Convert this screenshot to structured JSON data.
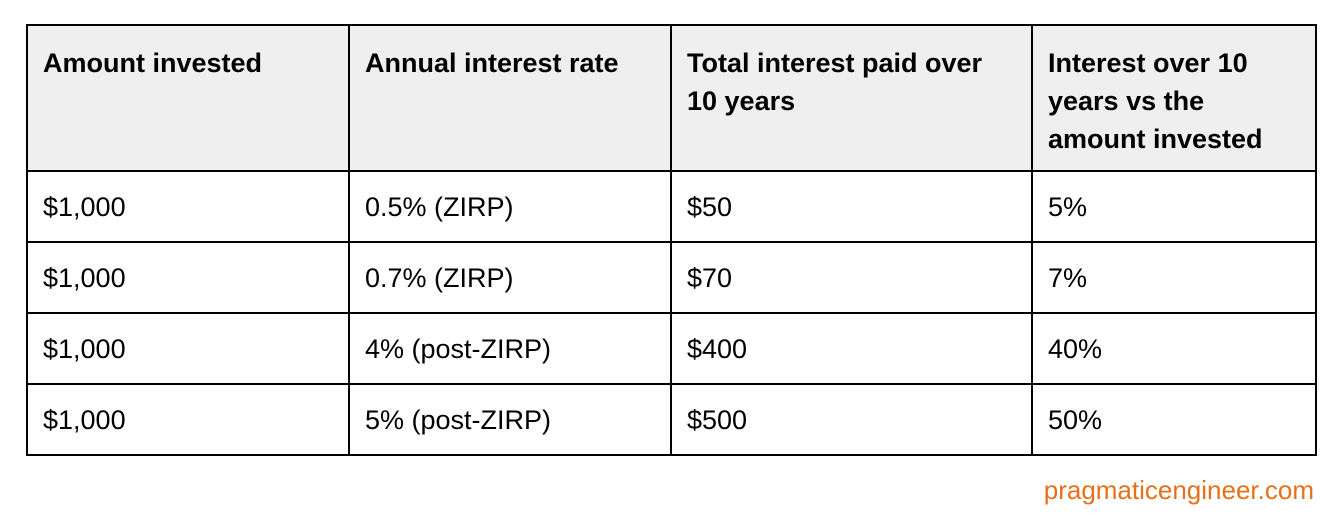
{
  "table": {
    "headers": [
      "Amount invested",
      "Annual interest rate",
      "Total interest paid over 10 years",
      "Interest over 10 years vs the amount invested"
    ],
    "rows": [
      [
        "$1,000",
        "0.5% (ZIRP)",
        "$50",
        "5%"
      ],
      [
        "$1,000",
        "0.7% (ZIRP)",
        "$70",
        "7%"
      ],
      [
        "$1,000",
        "4% (post-ZIRP)",
        "$400",
        "40%"
      ],
      [
        "$1,000",
        "5% (post-ZIRP)",
        "$500",
        "50%"
      ]
    ]
  },
  "watermark": {
    "text": "pragmaticengineer.com",
    "color": "#e8701a"
  },
  "colors": {
    "header_background": "#efefef",
    "border": "#000000",
    "text": "#000000"
  }
}
